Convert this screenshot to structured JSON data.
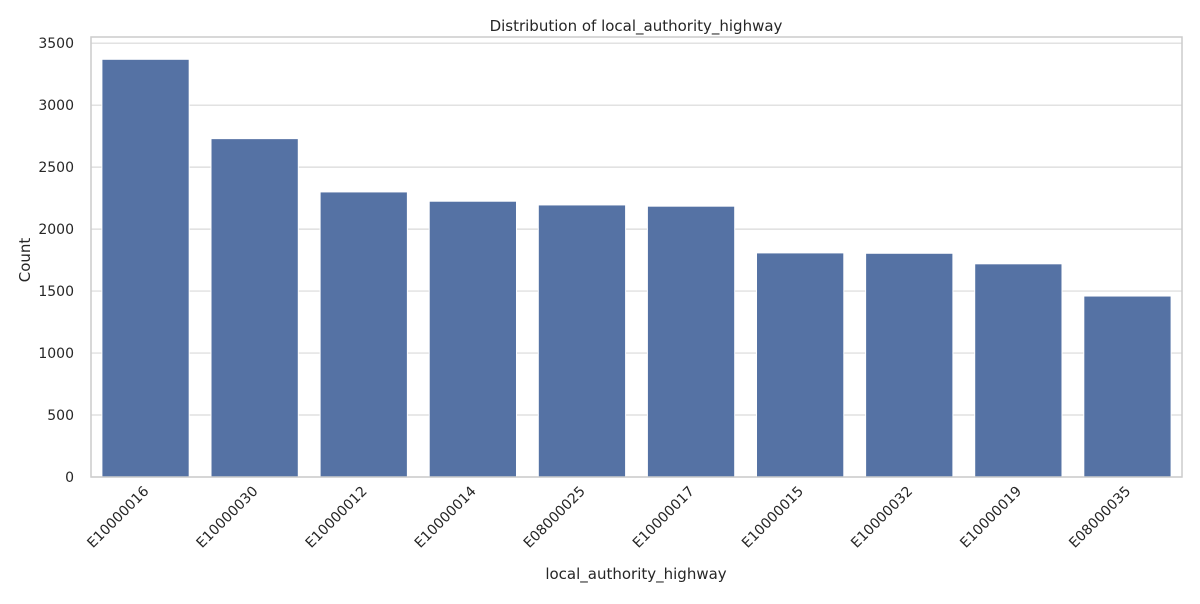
{
  "chart_data": {
    "type": "bar",
    "title": "Distribution of local_authority_highway",
    "xlabel": "local_authority_highway",
    "ylabel": "Count",
    "categories": [
      "E10000016",
      "E10000030",
      "E10000012",
      "E10000014",
      "E08000025",
      "E10000017",
      "E10000015",
      "E10000032",
      "E10000019",
      "E08000035"
    ],
    "values": [
      3370,
      2730,
      2300,
      2225,
      2195,
      2185,
      1808,
      1805,
      1720,
      1460
    ],
    "ylim": [
      0,
      3550
    ],
    "yticks": [
      0,
      500,
      1000,
      1500,
      2000,
      2500,
      3000,
      3500
    ],
    "grid": true,
    "bar_color": "#5572a4",
    "grid_color": "#d9d9d9",
    "spine_color": "#cccccc"
  }
}
